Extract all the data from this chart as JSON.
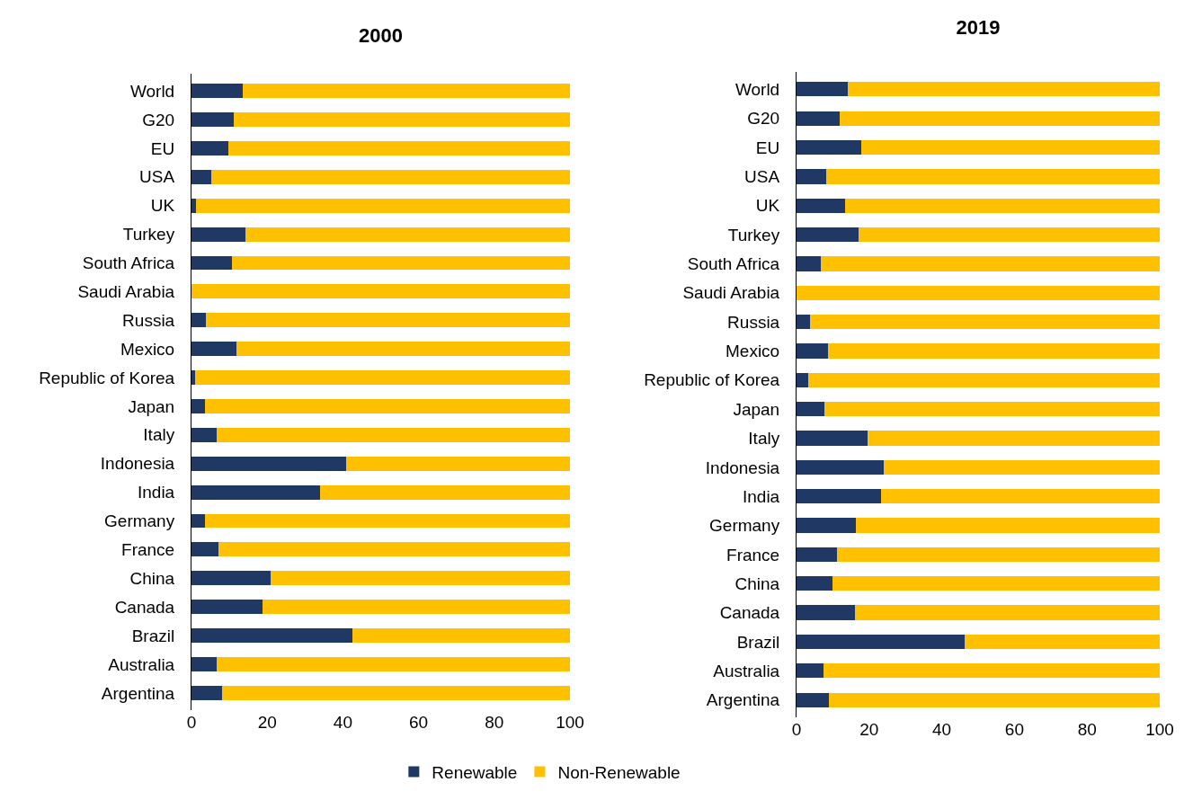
{
  "chart_data": [
    {
      "type": "bar",
      "title": "2000",
      "orientation": "horizontal",
      "stacked": true,
      "legend": "bottom",
      "grid": false,
      "categories": [
        "World",
        "G20",
        "EU",
        "USA",
        "UK",
        "Turkey",
        "South Africa",
        "Saudi Arabia",
        "Russia",
        "Mexico",
        "Republic of Korea",
        "Japan",
        "Italy",
        "Indonesia",
        "India",
        "Germany",
        "France",
        "China",
        "Canada",
        "Brazil",
        "Australia",
        "Argentina"
      ],
      "xlim": [
        0,
        100
      ],
      "xticks": [
        0,
        20,
        40,
        60,
        80,
        100
      ],
      "series": [
        {
          "name": "Renewable",
          "color": "#1f3864",
          "values": [
            13.5,
            11.2,
            9.7,
            5.2,
            1.2,
            14.3,
            10.7,
            0,
            3.8,
            11.9,
            1.0,
            3.6,
            6.7,
            40.9,
            34.0,
            3.6,
            7.1,
            20.9,
            18.8,
            42.5,
            6.7,
            8.1
          ]
        },
        {
          "name": "Non-Renewable",
          "color": "#ffc000",
          "values": [
            86.5,
            88.8,
            90.3,
            94.8,
            98.8,
            85.7,
            89.3,
            100,
            96.2,
            88.1,
            99.0,
            96.4,
            93.3,
            59.1,
            66.0,
            96.4,
            92.9,
            79.1,
            81.2,
            57.5,
            93.3,
            91.9
          ]
        }
      ]
    },
    {
      "type": "bar",
      "title": "2019",
      "orientation": "horizontal",
      "stacked": true,
      "grid": false,
      "categories": [
        "World",
        "G20",
        "EU",
        "USA",
        "UK",
        "Turkey",
        "South Africa",
        "Saudi Arabia",
        "Russia",
        "Mexico",
        "Republic of Korea",
        "Japan",
        "Italy",
        "Indonesia",
        "India",
        "Germany",
        "France",
        "China",
        "Canada",
        "Brazil",
        "Australia",
        "Argentina"
      ],
      "xlim": [
        0,
        100
      ],
      "xticks": [
        0,
        20,
        40,
        60,
        80,
        100
      ],
      "series": [
        {
          "color": "#1f3864",
          "values": [
            14.1,
            11.9,
            17.8,
            8.2,
            13.4,
            17.1,
            6.7,
            0,
            3.7,
            8.7,
            3.2,
            7.7,
            19.6,
            24.0,
            23.3,
            16.3,
            11.1,
            9.9,
            16.1,
            46.3,
            7.4,
            8.9
          ]
        },
        {
          "color": "#ffc000",
          "values": [
            85.9,
            88.1,
            82.2,
            91.8,
            86.6,
            82.9,
            93.3,
            100,
            96.3,
            91.3,
            96.8,
            92.3,
            80.4,
            76.0,
            76.7,
            83.7,
            88.9,
            90.1,
            83.9,
            53.7,
            92.6,
            91.1
          ]
        }
      ]
    }
  ]
}
